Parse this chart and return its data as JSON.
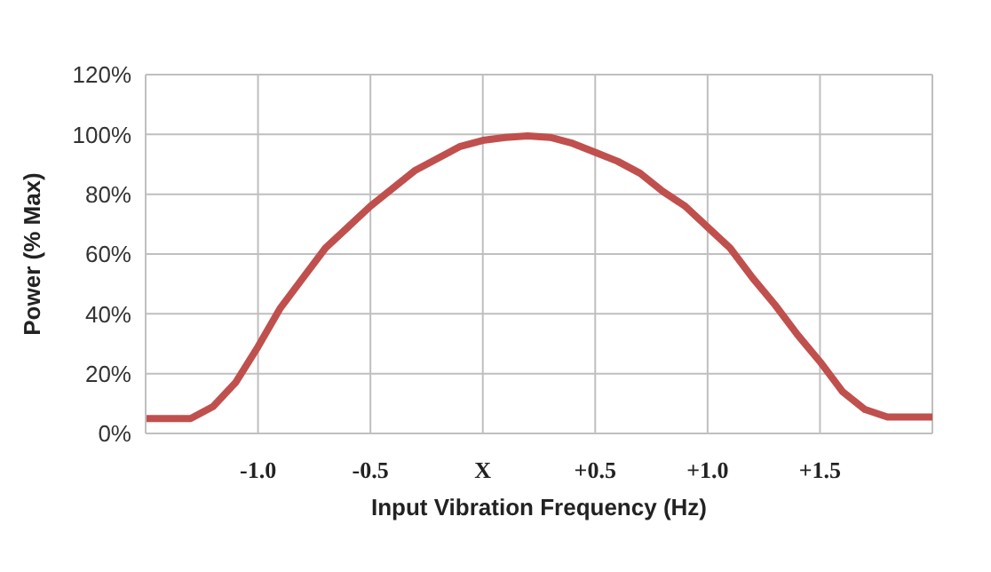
{
  "chart_data": {
    "type": "line",
    "xlabel": "Input Vibration Frequency (Hz)",
    "ylabel": "Power (% Max)",
    "x": [
      -1.5,
      -1.4,
      -1.3,
      -1.2,
      -1.1,
      -1.0,
      -0.9,
      -0.8,
      -0.7,
      -0.6,
      -0.5,
      -0.4,
      -0.3,
      -0.2,
      -0.1,
      0,
      0.1,
      0.2,
      0.3,
      0.4,
      0.5,
      0.6,
      0.7,
      0.8,
      0.9,
      1.0,
      1.1,
      1.2,
      1.3,
      1.4,
      1.5,
      1.6,
      1.7,
      1.8,
      1.9,
      2.0
    ],
    "series": [
      {
        "color": "#c0504d",
        "values": [
          5,
          5,
          5,
          9,
          17,
          29,
          42,
          52,
          62,
          69,
          76,
          82,
          88,
          92,
          96,
          98,
          99,
          99.5,
          99,
          97,
          94,
          91,
          87,
          81,
          76,
          69,
          62,
          52,
          43,
          33,
          24,
          14,
          8,
          5.5,
          5.5,
          5.5
        ]
      }
    ],
    "xlim": [
      -1.5,
      2.0
    ],
    "xticks": [
      {
        "value": -1.5,
        "label": null
      },
      {
        "value": -1.0,
        "label": "-1.0"
      },
      {
        "value": -0.5,
        "label": "-0.5"
      },
      {
        "value": 0,
        "label": "X"
      },
      {
        "value": 0.5,
        "label": "+0.5"
      },
      {
        "value": 1.0,
        "label": "+1.0"
      },
      {
        "value": 1.5,
        "label": "+1.5"
      },
      {
        "value": 2.0,
        "label": null
      }
    ],
    "ylim": [
      0,
      120
    ],
    "yticks": [
      {
        "value": 0,
        "label": "0%"
      },
      {
        "value": 20,
        "label": "20%"
      },
      {
        "value": 40,
        "label": "40%"
      },
      {
        "value": 60,
        "label": "60%"
      },
      {
        "value": 80,
        "label": "80%"
      },
      {
        "value": 100,
        "label": "100%"
      },
      {
        "value": 120,
        "label": "120%"
      }
    ],
    "grid": true,
    "marker": "none",
    "line_style": "solid"
  }
}
